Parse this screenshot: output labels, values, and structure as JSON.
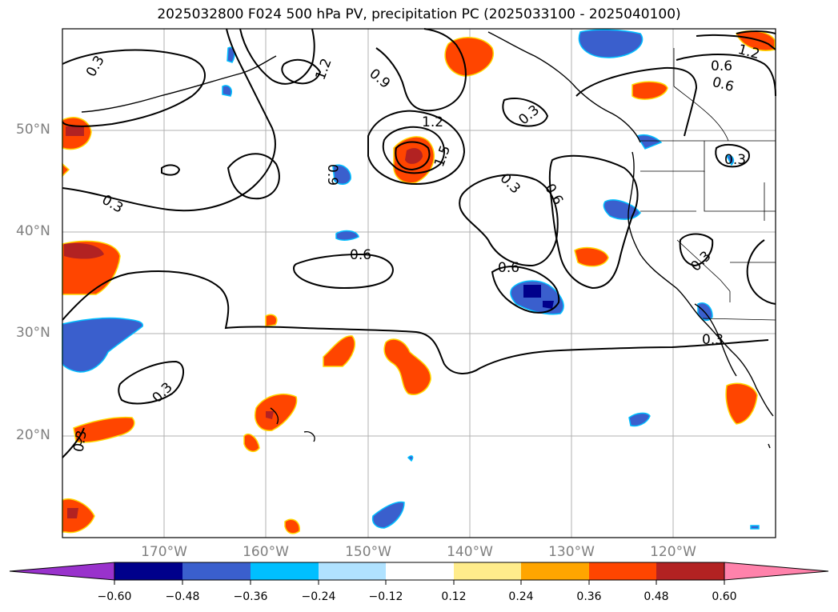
{
  "title": "2025032800 F024 500 hPa PV, precipitation PC (2025033100 - 2025040100)",
  "lat_ticks": [
    "50°N",
    "40°N",
    "30°N",
    "20°N"
  ],
  "lon_ticks": [
    "170°W",
    "160°W",
    "150°W",
    "140°W",
    "130°W",
    "120°W"
  ],
  "contour_labels": [
    "0.3",
    "1.2",
    "1.5",
    "0.9",
    "0.6",
    "0.3",
    "0.9",
    "0.6",
    "1.2",
    "0.3",
    "0.6",
    "0.3",
    "0.6",
    "0.6",
    "0.3",
    "0.3",
    "0.3",
    "0.3",
    "1.2",
    "0.3"
  ],
  "colorbar": {
    "ticks": [
      "−0.60",
      "−0.48",
      "−0.36",
      "−0.24",
      "−0.12",
      "0.12",
      "0.24",
      "0.36",
      "0.48",
      "0.60"
    ],
    "colors": [
      "#9932cc",
      "#00008b",
      "#3a5fcd",
      "#00bfff",
      "#b0e2ff",
      "#ffffff",
      "#ffec8b",
      "#ffa500",
      "#ff4500",
      "#b22222",
      "#ff82ab"
    ],
    "extend": "both"
  },
  "map_region": {
    "lon_range": [
      -180,
      -110
    ],
    "lat_range": [
      10,
      60
    ],
    "grid": true
  }
}
